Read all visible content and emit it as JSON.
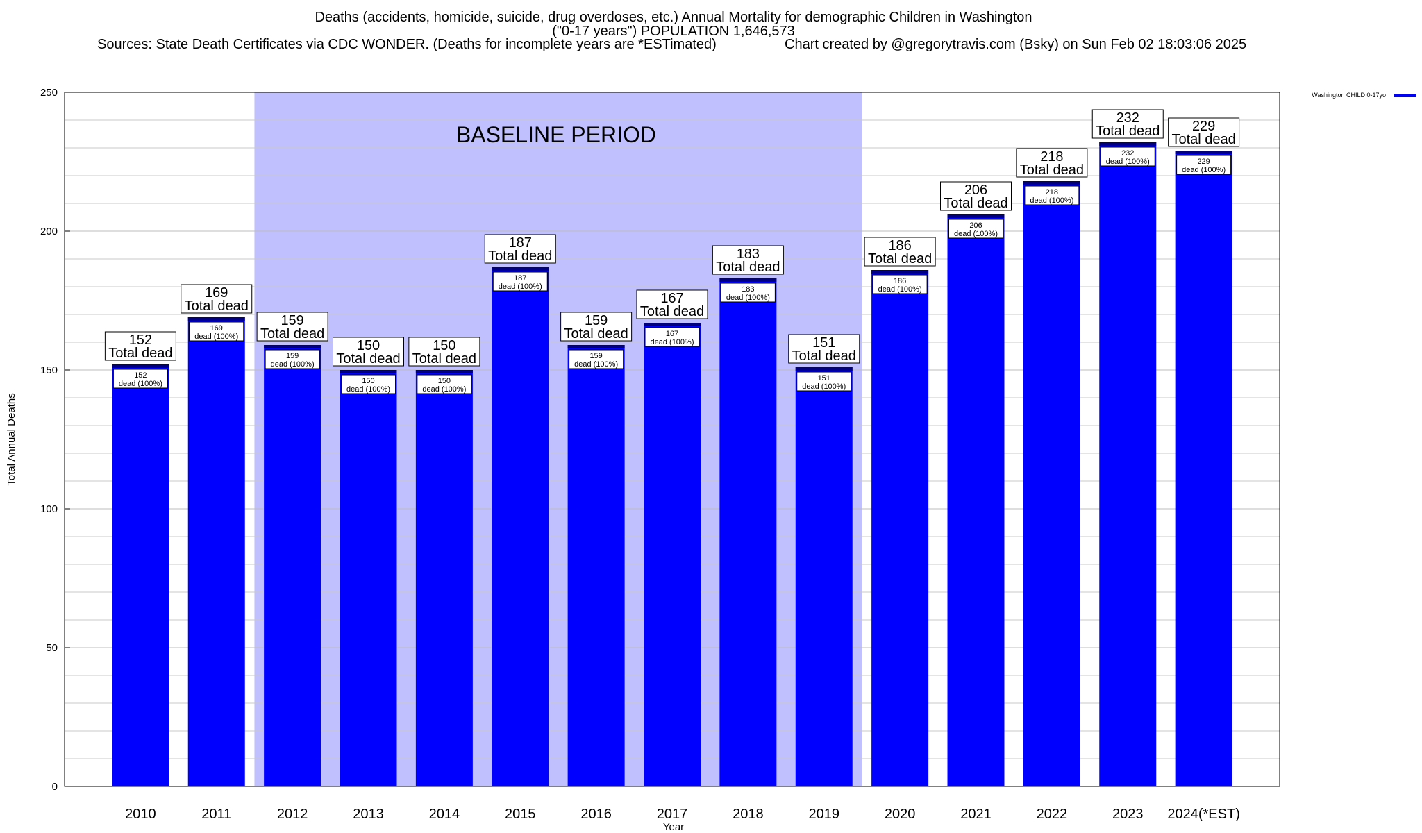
{
  "header": {
    "title_line1": "Deaths (accidents, homicide, suicide, drug overdoses, etc.) Annual Mortality for demographic Children in Washington",
    "title_line2": "(\"0-17 years\") POPULATION 1,646,573",
    "sources": "Sources: State Death Certificates via CDC WONDER. (Deaths for incomplete years are *ESTimated)",
    "credit": "Chart created by @gregorytravis.com (Bsky) on Sun Feb 02 18:03:06 2025"
  },
  "chart_data": {
    "type": "bar",
    "categories": [
      "2010",
      "2011",
      "2012",
      "2013",
      "2014",
      "2015",
      "2016",
      "2017",
      "2018",
      "2019",
      "2020",
      "2021",
      "2022",
      "2023",
      "2024(*EST)"
    ],
    "series": [
      {
        "name": "Washington CHILD 0-17yo",
        "values": [
          152,
          169,
          159,
          150,
          150,
          187,
          159,
          167,
          183,
          151,
          186,
          206,
          218,
          232,
          229
        ],
        "color": "#0000ff"
      }
    ],
    "total_label": "Total dead",
    "inner_label_suffix": "dead (100%)",
    "xlabel": "Year",
    "ylabel": "Total Annual Deaths",
    "ylim": [
      0,
      250
    ],
    "yticks": [
      0,
      50,
      100,
      150,
      200,
      250
    ],
    "baseline": {
      "label": "BASELINE PERIOD",
      "start": "2012",
      "end": "2019",
      "color": "#c0c0ff"
    },
    "grid": true,
    "legend_position": "top-right",
    "colors": {
      "bar": "#0000ff",
      "bar_cap": "#000080",
      "baseline": "#c0c0ff",
      "grid": "#c8c8c8"
    }
  }
}
